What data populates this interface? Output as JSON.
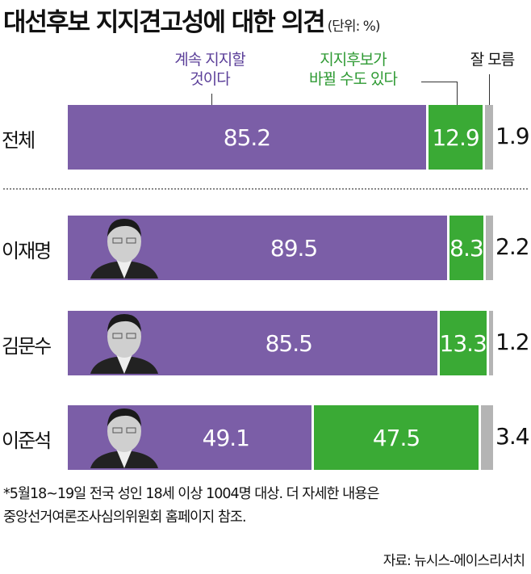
{
  "chart_data": {
    "type": "bar",
    "stacked": true,
    "orientation": "horizontal",
    "title": "대선후보 지지견고성에 대한 의견",
    "unit": "(단위: %)",
    "categories": [
      "전체",
      "이재명",
      "김문수",
      "이준석"
    ],
    "series": [
      {
        "name": "계속 지지할 것이다",
        "color": "#7b5ea7",
        "values": [
          85.2,
          89.5,
          85.5,
          49.1
        ]
      },
      {
        "name": "지지후보가 바뀔 수도 있다",
        "color": "#3aaa35",
        "values": [
          12.9,
          8.3,
          13.3,
          47.5
        ]
      },
      {
        "name": "잘 모름",
        "color": "#b4b4b4",
        "values": [
          1.9,
          2.2,
          1.2,
          3.4
        ]
      }
    ],
    "legend_lines": {
      "s0": [
        "계속 지지할",
        "것이다"
      ],
      "s1": [
        "지지후보가",
        "바뀔 수도 있다"
      ],
      "s2": [
        "잘 모름"
      ]
    },
    "xlim": [
      0,
      100
    ]
  },
  "note": [
    "*5월18~19일 전국 성인 18세 이상 1004명 대상. 더 자세한 내용은",
    "중앙선거여론조사심의위원회 홈페이지 참조."
  ],
  "source": "자료: 뉴시스-에이스리서치"
}
